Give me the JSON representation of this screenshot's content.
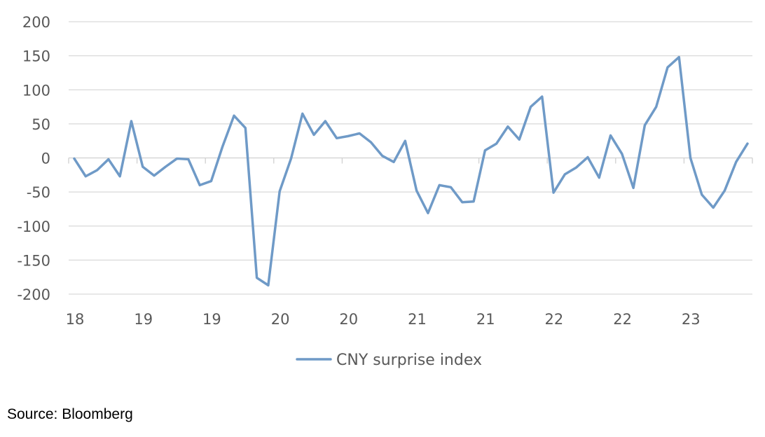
{
  "chart_data": {
    "type": "line",
    "title": "",
    "xlabel": "",
    "ylabel": "",
    "ylim": [
      -200,
      200
    ],
    "yticks": [
      200,
      150,
      100,
      50,
      0,
      -50,
      -100,
      -150,
      -200
    ],
    "xtick_labels": [
      "18",
      "19",
      "19",
      "20",
      "20",
      "21",
      "21",
      "22",
      "22",
      "23"
    ],
    "grid": "horizontal",
    "legend": "bottom-center",
    "series": [
      {
        "name": "CNY surprise index",
        "color": "#6f9ac7",
        "values": [
          -1,
          -27,
          -18,
          -2,
          -27,
          54,
          -13,
          -26,
          -13,
          -1,
          -2,
          -40,
          -34,
          17,
          62,
          44,
          -176,
          -187,
          -49,
          -1,
          65,
          34,
          54,
          29,
          32,
          36,
          23,
          3,
          -6,
          25,
          -48,
          -81,
          -40,
          -43,
          -65,
          -64,
          11,
          21,
          46,
          27,
          75,
          90,
          -51,
          -24,
          -14,
          1,
          -29,
          33,
          6,
          -44,
          48,
          75,
          133,
          148,
          0,
          -54,
          -73,
          -48,
          -6,
          21
        ]
      }
    ]
  },
  "source": "Source: Bloomberg"
}
